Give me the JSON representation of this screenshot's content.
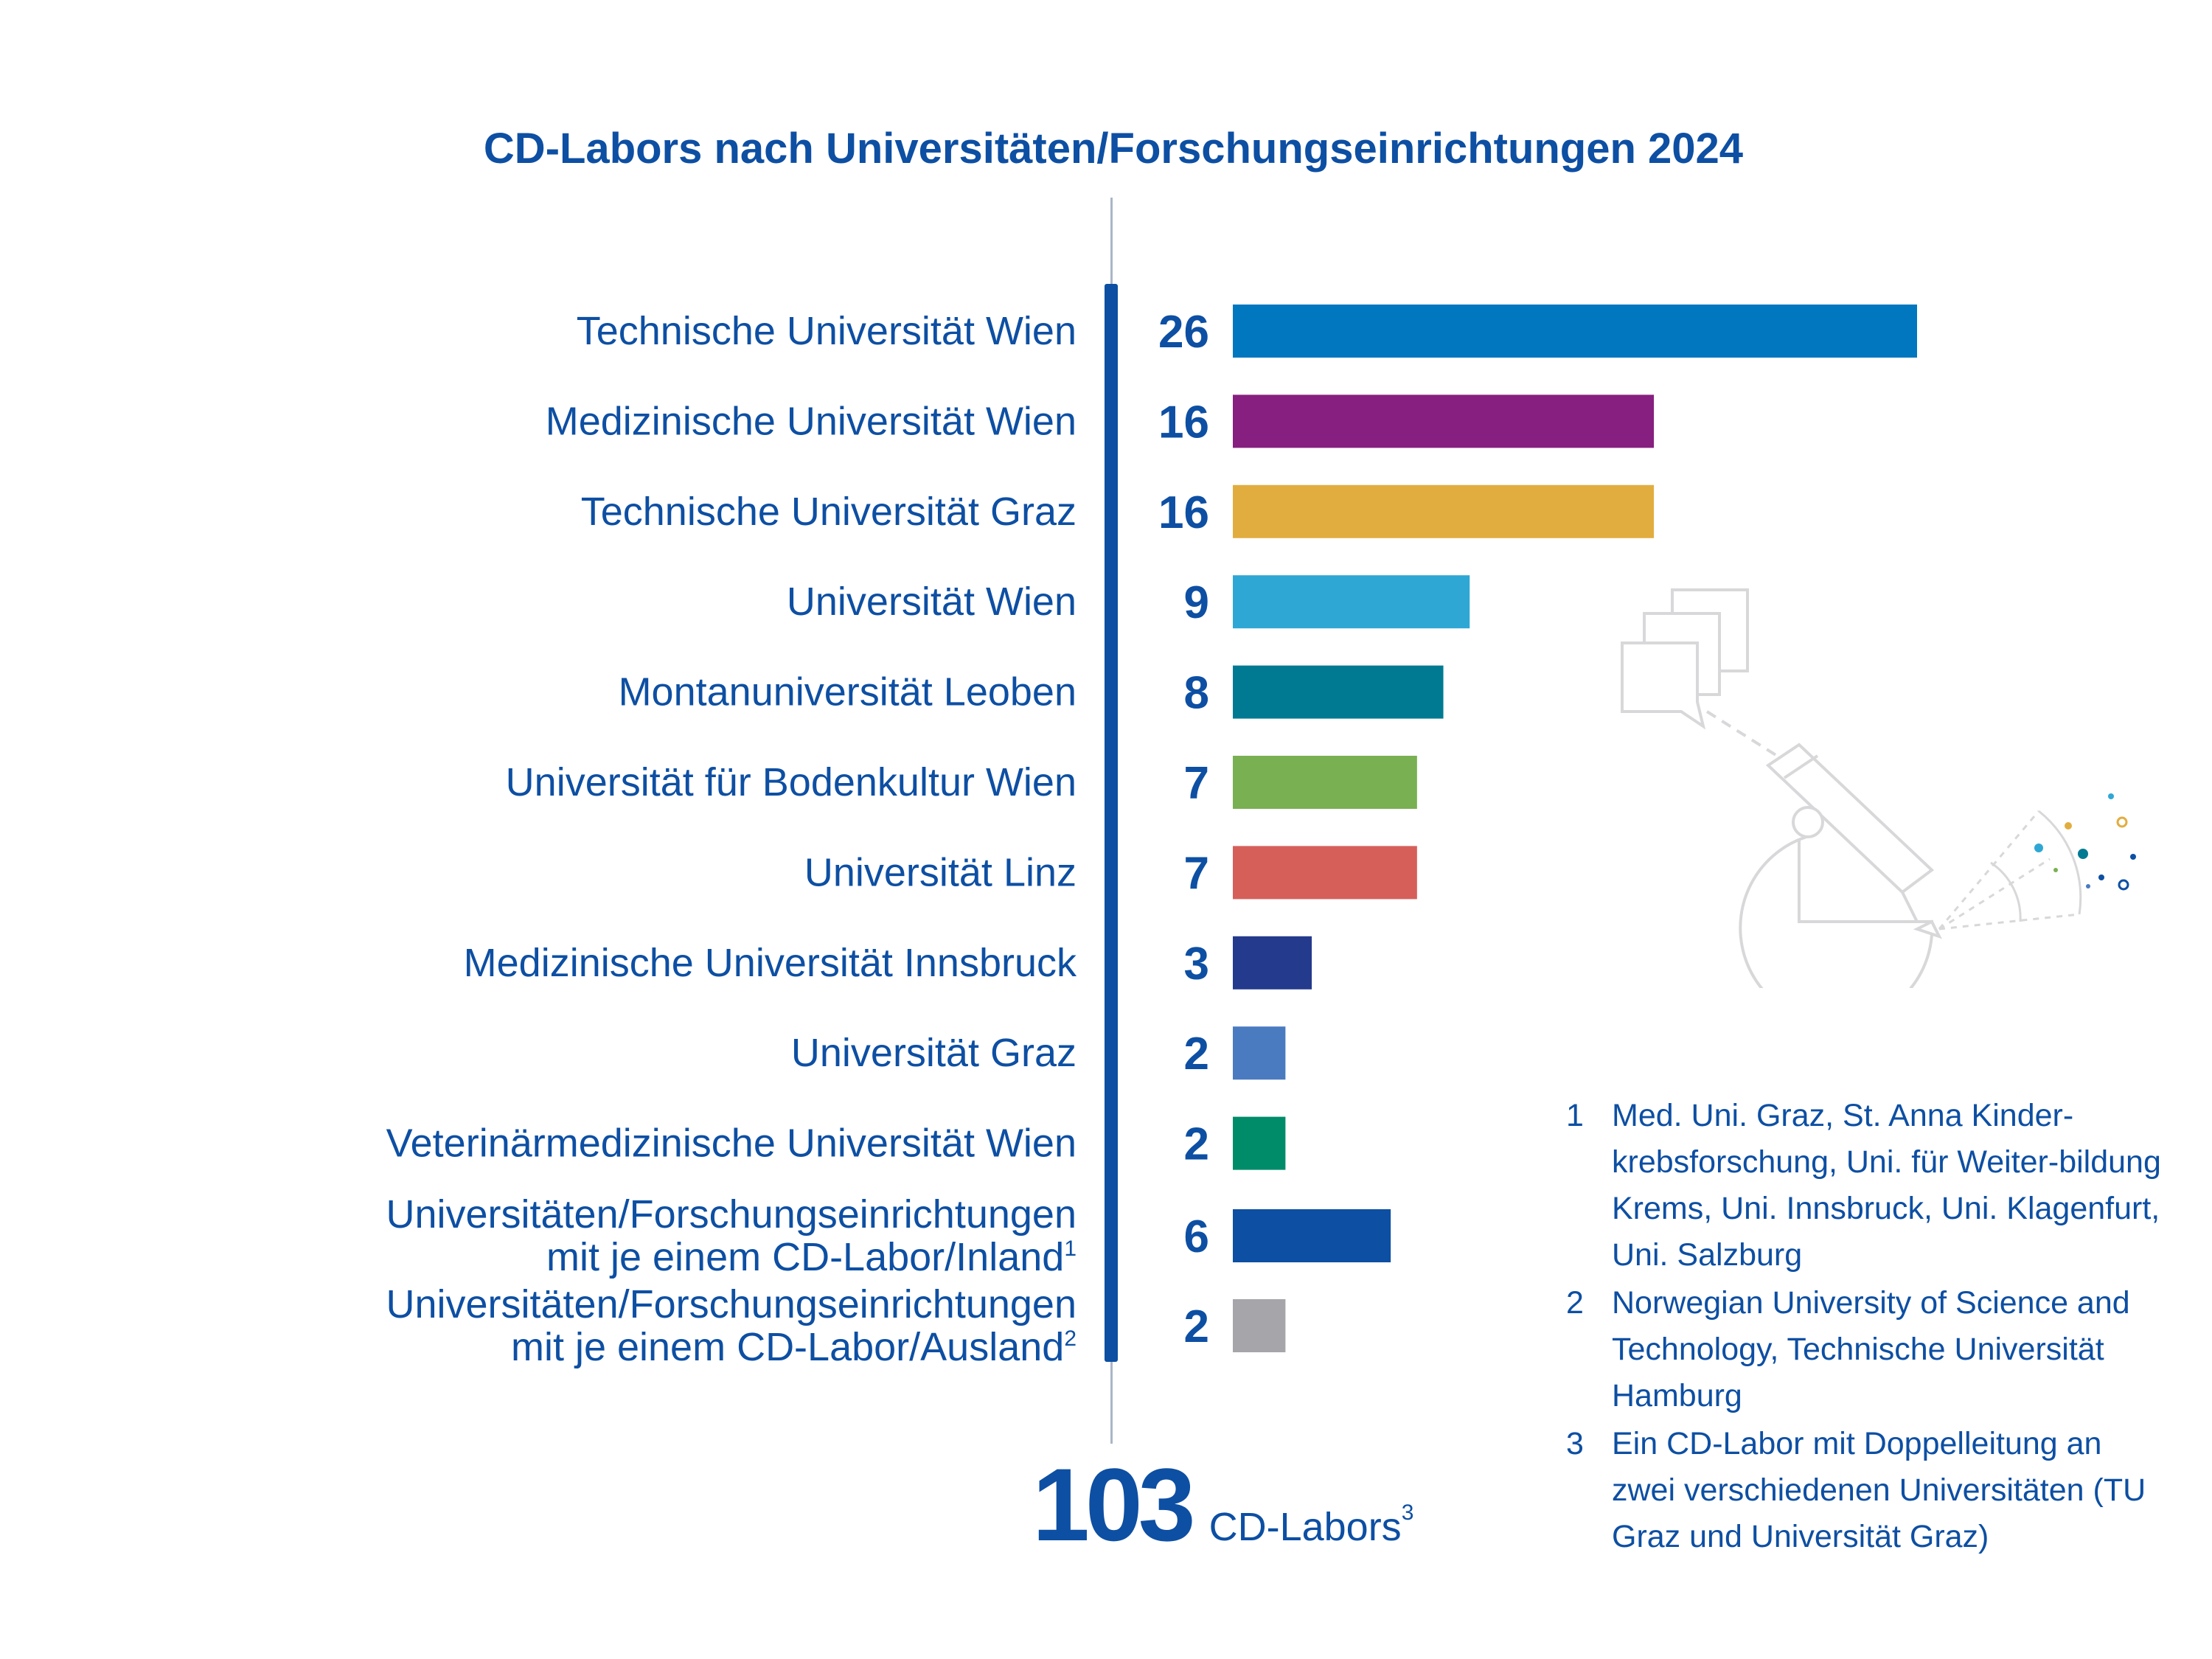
{
  "chart_data": {
    "type": "bar",
    "orientation": "horizontal",
    "title": "CD-Labors nach Universitäten/Forschungseinrichtungen 2024",
    "categories": [
      {
        "lines": [
          "Technische Universität Wien"
        ],
        "sup": ""
      },
      {
        "lines": [
          "Medizinische Universität Wien"
        ],
        "sup": ""
      },
      {
        "lines": [
          "Technische Universität Graz"
        ],
        "sup": ""
      },
      {
        "lines": [
          "Universität Wien"
        ],
        "sup": ""
      },
      {
        "lines": [
          "Montanuniversität Leoben"
        ],
        "sup": ""
      },
      {
        "lines": [
          "Universität für Bodenkultur Wien"
        ],
        "sup": ""
      },
      {
        "lines": [
          "Universität Linz"
        ],
        "sup": ""
      },
      {
        "lines": [
          "Medizinische Universität Innsbruck"
        ],
        "sup": ""
      },
      {
        "lines": [
          "Universität Graz"
        ],
        "sup": ""
      },
      {
        "lines": [
          "Veterinärmedizinische Universität Wien"
        ],
        "sup": ""
      },
      {
        "lines": [
          "Universitäten/Forschungseinrichtungen",
          "mit je einem CD-Labor/Inland"
        ],
        "sup": "1"
      },
      {
        "lines": [
          "Universitäten/Forschungseinrichtungen",
          "mit je einem CD-Labor/Ausland"
        ],
        "sup": "2"
      }
    ],
    "values": [
      26,
      16,
      16,
      9,
      8,
      7,
      7,
      3,
      2,
      2,
      6,
      2
    ],
    "colors": [
      "#0077be",
      "#861f7f",
      "#e2ad3f",
      "#2fa7d5",
      "#007a92",
      "#79b052",
      "#d65f5a",
      "#243a8c",
      "#4a7bc1",
      "#008c69",
      "#0d4fa3",
      "#a5a5aa"
    ],
    "xlim": [
      0,
      26
    ],
    "grid": false,
    "legend": "none"
  },
  "total": {
    "number": "103",
    "unit": "CD-Labors",
    "sup": "3"
  },
  "footnotes": [
    {
      "num": "1",
      "text": "Med. Uni. Graz, St. Anna Kinder-krebsforschung, Uni. für Weiter-bildung Krems, Uni. Innsbruck, Uni. Klagenfurt, Uni. Salzburg"
    },
    {
      "num": "2",
      "text": "Norwegian University of Science and Technology, Technische Universität Hamburg"
    },
    {
      "num": "3",
      "text": "Ein CD-Labor mit Doppelleitung an zwei verschiedenen Universitäten (TU Graz und Universität Graz)"
    }
  ],
  "decoration": {
    "icon": "microscope-illustration-icon"
  },
  "colors": {
    "primary": "#0d4fa3",
    "axis": "#aab6c8"
  }
}
